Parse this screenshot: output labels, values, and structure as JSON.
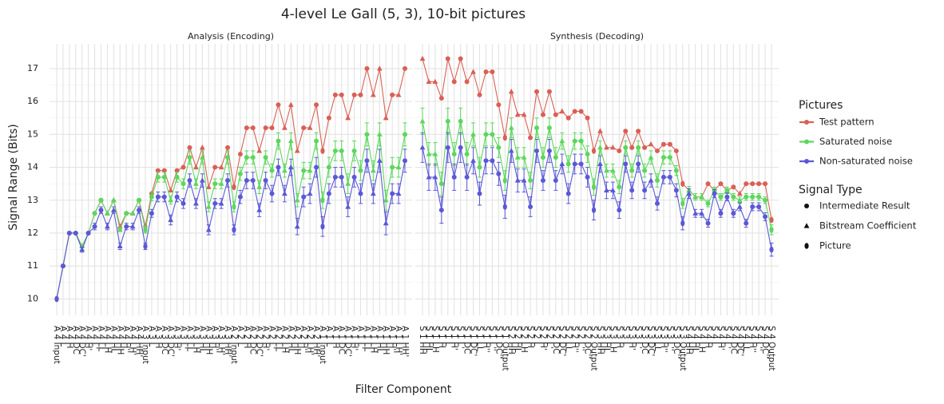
{
  "chart_data": {
    "type": "line",
    "title": "4-level Le Gall (5, 3), 10-bit pictures",
    "xlabel": "Filter Component",
    "ylabel": "Signal Range (Bits)",
    "ylim": [
      9.5,
      17.75
    ],
    "yticks": [
      10,
      11,
      12,
      13,
      14,
      15,
      16,
      17
    ],
    "grid": true,
    "legend_position": "right",
    "legend": {
      "title": "Pictures",
      "entries": [
        {
          "name": "Test pattern",
          "color": "#d95f55"
        },
        {
          "name": "Saturated noise",
          "color": "#5dd65d"
        },
        {
          "name": "Non-saturated noise",
          "color": "#5b58d6"
        }
      ]
    },
    "shape_legend": {
      "title": "Signal Type",
      "entries": [
        "Intermediate Result",
        "Bitstream Coefficient",
        "Picture"
      ]
    },
    "facets": [
      {
        "title": "Analysis (Encoding)",
        "categories": [
          "A 4 Input",
          "A 4 L",
          "A 4 H",
          "A 4 DC",
          "A 4 DC'",
          "A 4 H'",
          "A 4 L'",
          "A 4 LL",
          "A 4 LH",
          "A 4 HL",
          "A 4 HH",
          "A 4 H''",
          "A 4 LH'",
          "A 4 HH'",
          "A 3 Input",
          "A 3 L",
          "A 3 H",
          "A 3 DC",
          "A 3 DC'",
          "A 3 H'",
          "A 3 L'",
          "A 3 LL",
          "A 3 LH",
          "A 3 HL",
          "A 3 HH",
          "A 3 H''",
          "A 3 LH'",
          "A 3 HH'",
          "A 2 Input",
          "A 2 L",
          "A 2 H",
          "A 2 DC",
          "A 2 DC'",
          "A 2 H'",
          "A 2 L'",
          "A 2 LL",
          "A 2 LH",
          "A 2 HL",
          "A 2 HH",
          "A 2 H''",
          "A 2 LH'",
          "A 2 HH'",
          "A 1 Input",
          "A 1 L",
          "A 1 H",
          "A 1 DC",
          "A 1 DC'",
          "A 1 H'",
          "A 1 L'",
          "A 1 LL",
          "A 1 LH",
          "A 1 HL",
          "A 1 HH",
          "A 1 H''",
          "A 1 LH'",
          "A 1 HH'"
        ],
        "signal_types": [
          "Picture",
          "Intermediate Result",
          "Intermediate Result",
          "Intermediate Result",
          "Bitstream Coefficient",
          "Intermediate Result",
          "Intermediate Result",
          "Intermediate Result",
          "Bitstream Coefficient",
          "Bitstream Coefficient",
          "Bitstream Coefficient",
          "Intermediate Result",
          "Bitstream Coefficient",
          "Intermediate Result",
          "Picture",
          "Intermediate Result",
          "Intermediate Result",
          "Intermediate Result",
          "Bitstream Coefficient",
          "Intermediate Result",
          "Intermediate Result",
          "Intermediate Result",
          "Bitstream Coefficient",
          "Bitstream Coefficient",
          "Bitstream Coefficient",
          "Intermediate Result",
          "Bitstream Coefficient",
          "Intermediate Result",
          "Picture",
          "Intermediate Result",
          "Intermediate Result",
          "Intermediate Result",
          "Bitstream Coefficient",
          "Intermediate Result",
          "Intermediate Result",
          "Intermediate Result",
          "Bitstream Coefficient",
          "Bitstream Coefficient",
          "Bitstream Coefficient",
          "Intermediate Result",
          "Bitstream Coefficient",
          "Intermediate Result",
          "Picture",
          "Intermediate Result",
          "Intermediate Result",
          "Intermediate Result",
          "Bitstream Coefficient",
          "Intermediate Result",
          "Intermediate Result",
          "Intermediate Result",
          "Bitstream Coefficient",
          "Bitstream Coefficient",
          "Bitstream Coefficient",
          "Intermediate Result",
          "Bitstream Coefficient",
          "Intermediate Result"
        ],
        "series": [
          {
            "values": [
              10,
              11,
              12,
              12,
              11.6,
              12,
              12.6,
              13,
              12.6,
              13,
              12.2,
              12.6,
              12.6,
              13,
              12.2,
              13.2,
              13.9,
              13.9,
              13.3,
              13.9,
              14,
              14.6,
              14,
              14.6,
              13.4,
              14,
              14,
              14.6,
              13.4,
              14.4,
              15.2,
              15.2,
              14.5,
              15.2,
              15.2,
              15.9,
              15.2,
              15.9,
              14.5,
              15.2,
              15.2,
              15.9,
              14.5,
              15.5,
              16.2,
              16.2,
              15.5,
              16.2,
              16.2,
              17,
              16.2,
              17,
              15.5,
              16.2,
              16.2,
              17
            ]
          },
          {
            "values": [
              10,
              11,
              12,
              12,
              11.6,
              12,
              12.6,
              13,
              12.6,
              13,
              12.1,
              12.6,
              12.6,
              13,
              12.1,
              13.1,
              13.7,
              13.7,
              13,
              13.7,
              13.5,
              14.3,
              13.5,
              14.3,
              12.8,
              13.5,
              13.5,
              14.3,
              12.8,
              13.8,
              14.3,
              14.3,
              13.4,
              14.3,
              13.9,
              14.8,
              13.9,
              14.8,
              13,
              13.9,
              13.9,
              14.8,
              13,
              14,
              14.5,
              14.5,
              13.5,
              14.5,
              13.9,
              15,
              13.9,
              15,
              13,
              14,
              14,
              15
            ],
            "errors": [
              0,
              0,
              0,
              0,
              0,
              0,
              0,
              0,
              0,
              0,
              0,
              0,
              0,
              0,
              0.1,
              0.12,
              0.15,
              0.15,
              0.12,
              0.15,
              0.15,
              0.2,
              0.15,
              0.2,
              0.15,
              0.15,
              0.15,
              0.2,
              0.15,
              0.2,
              0.2,
              0.2,
              0.2,
              0.2,
              0.2,
              0.25,
              0.2,
              0.25,
              0.2,
              0.25,
              0.25,
              0.25,
              0.25,
              0.3,
              0.3,
              0.3,
              0.3,
              0.3,
              0.3,
              0.35,
              0.3,
              0.35,
              0.3,
              0.3,
              0.3,
              0.35
            ]
          },
          {
            "values": [
              10,
              11,
              12,
              12,
              11.5,
              12,
              12.2,
              12.7,
              12.2,
              12.7,
              11.6,
              12.2,
              12.2,
              12.7,
              11.6,
              12.6,
              13.1,
              13.1,
              12.4,
              13.1,
              12.9,
              13.6,
              12.9,
              13.6,
              12.1,
              12.9,
              12.9,
              13.6,
              12.1,
              13.1,
              13.6,
              13.6,
              12.7,
              13.6,
              13.2,
              14,
              13.2,
              14,
              12.2,
              13.1,
              13.2,
              14,
              12.2,
              13.2,
              13.7,
              13.7,
              12.8,
              13.7,
              13.2,
              14.2,
              13.2,
              14.2,
              12.3,
              13.2,
              13.2,
              14.2
            ],
            "errors": [
              0,
              0,
              0,
              0,
              0.08,
              0,
              0.1,
              0.1,
              0.1,
              0.1,
              0.1,
              0.1,
              0.1,
              0.1,
              0.1,
              0.12,
              0.15,
              0.15,
              0.15,
              0.15,
              0.15,
              0.2,
              0.15,
              0.2,
              0.15,
              0.15,
              0.15,
              0.2,
              0.15,
              0.2,
              0.25,
              0.25,
              0.2,
              0.25,
              0.25,
              0.25,
              0.25,
              0.25,
              0.25,
              0.3,
              0.3,
              0.3,
              0.3,
              0.3,
              0.3,
              0.3,
              0.3,
              0.3,
              0.3,
              0.35,
              0.3,
              0.35,
              0.35,
              0.3,
              0.3,
              0.35
            ]
          }
        ]
      },
      {
        "title": "Synthesis (Decoding)",
        "categories": [
          "S 1 HH",
          "S 1 HL",
          "S 1 LH",
          "S 1 H",
          "S 1 L",
          "S 1 H'",
          "S 1 L'",
          "S 1 DC",
          "S 1 DC'",
          "S 1 LL",
          "S 1 H''",
          "S 1 L''",
          "S 1 DC''",
          "S 1 Output",
          "S 2 HH",
          "S 2 HL",
          "S 2 LH",
          "S 2 H",
          "S 2 L",
          "S 2 H'",
          "S 2 L'",
          "S 2 DC",
          "S 2 DC'",
          "S 2 LL",
          "S 2 H''",
          "S 2 L''",
          "S 2 DC''",
          "S 2 Output",
          "S 3 HH",
          "S 3 HL",
          "S 3 LH",
          "S 3 H",
          "S 3 L",
          "S 3 H'",
          "S 3 L'",
          "S 3 DC",
          "S 3 DC'",
          "S 3 LL",
          "S 3 H''",
          "S 3 L''",
          "S 3 DC''",
          "S 3 Output",
          "S 4 HH",
          "S 4 HL",
          "S 4 LH",
          "S 4 H",
          "S 4 L",
          "S 4 H'",
          "S 4 L'",
          "S 4 DC",
          "S 4 DC'",
          "S 4 LL",
          "S 4 H''",
          "S 4 L''",
          "S 4 DC''",
          "S 4 Output"
        ],
        "signal_types": [
          "Bitstream Coefficient",
          "Bitstream Coefficient",
          "Bitstream Coefficient",
          "Intermediate Result",
          "Intermediate Result",
          "Intermediate Result",
          "Intermediate Result",
          "Intermediate Result",
          "Bitstream Coefficient",
          "Intermediate Result",
          "Intermediate Result",
          "Intermediate Result",
          "Intermediate Result",
          "Picture",
          "Bitstream Coefficient",
          "Bitstream Coefficient",
          "Bitstream Coefficient",
          "Intermediate Result",
          "Intermediate Result",
          "Intermediate Result",
          "Intermediate Result",
          "Intermediate Result",
          "Bitstream Coefficient",
          "Intermediate Result",
          "Intermediate Result",
          "Intermediate Result",
          "Intermediate Result",
          "Picture",
          "Bitstream Coefficient",
          "Bitstream Coefficient",
          "Bitstream Coefficient",
          "Intermediate Result",
          "Intermediate Result",
          "Intermediate Result",
          "Intermediate Result",
          "Intermediate Result",
          "Bitstream Coefficient",
          "Intermediate Result",
          "Intermediate Result",
          "Intermediate Result",
          "Intermediate Result",
          "Picture",
          "Bitstream Coefficient",
          "Bitstream Coefficient",
          "Bitstream Coefficient",
          "Intermediate Result",
          "Intermediate Result",
          "Intermediate Result",
          "Intermediate Result",
          "Intermediate Result",
          "Bitstream Coefficient",
          "Intermediate Result",
          "Intermediate Result",
          "Intermediate Result",
          "Intermediate Result",
          "Picture"
        ],
        "series": [
          {
            "values": [
              17.3,
              16.6,
              16.6,
              16.1,
              17.3,
              16.6,
              17.3,
              16.6,
              16.9,
              16.2,
              16.9,
              16.9,
              15.9,
              14.9,
              16.3,
              15.6,
              15.6,
              14.9,
              16.3,
              15.6,
              16.3,
              15.6,
              15.7,
              15.5,
              15.7,
              15.7,
              15.5,
              14.5,
              15.1,
              14.6,
              14.6,
              14.5,
              15.1,
              14.6,
              15.1,
              14.6,
              14.7,
              14.5,
              14.7,
              14.7,
              14.5,
              13.5,
              13.3,
              13.1,
              13.1,
              13.5,
              13.3,
              13.5,
              13.3,
              13.4,
              13.2,
              13.5,
              13.5,
              13.5,
              13.5,
              12.4
            ]
          },
          {
            "values": [
              15.4,
              14.4,
              14.4,
              13.5,
              15.4,
              14.4,
              15.4,
              14.4,
              15,
              14,
              15,
              15,
              14.6,
              13.6,
              15.2,
              14.3,
              14.3,
              13.6,
              15.2,
              14.3,
              15.2,
              14.3,
              14.8,
              14.1,
              14.8,
              14.8,
              14.4,
              13.4,
              14.6,
              13.9,
              13.9,
              13.4,
              14.6,
              13.9,
              14.6,
              13.9,
              14.3,
              13.6,
              14.3,
              14.3,
              13.9,
              12.9,
              13.3,
              13.1,
              13.1,
              12.9,
              13.3,
              13.1,
              13.3,
              13.1,
              13,
              13.1,
              13.1,
              13.1,
              13,
              12.1
            ],
            "errors": [
              0.4,
              0.35,
              0.35,
              0.35,
              0.4,
              0.35,
              0.4,
              0.35,
              0.35,
              0.3,
              0.35,
              0.35,
              0.3,
              0.3,
              0.3,
              0.3,
              0.3,
              0.25,
              0.3,
              0.3,
              0.3,
              0.3,
              0.25,
              0.25,
              0.25,
              0.25,
              0.25,
              0.25,
              0.2,
              0.2,
              0.2,
              0.2,
              0.2,
              0.2,
              0.2,
              0.2,
              0.2,
              0.2,
              0.2,
              0.2,
              0.15,
              0.15,
              0.12,
              0.1,
              0.1,
              0.1,
              0.1,
              0.1,
              0.1,
              0.1,
              0.1,
              0.1,
              0.1,
              0.1,
              0.1,
              0.15
            ]
          },
          {
            "values": [
              14.6,
              13.7,
              13.7,
              12.7,
              14.6,
              13.7,
              14.6,
              13.7,
              14.2,
              13.2,
              14.2,
              14.2,
              13.8,
              12.8,
              14.5,
              13.6,
              13.6,
              12.8,
              14.5,
              13.6,
              14.5,
              13.6,
              14.1,
              13.2,
              14.1,
              14.1,
              13.7,
              12.7,
              14.1,
              13.3,
              13.3,
              12.7,
              14.1,
              13.3,
              14.1,
              13.3,
              13.6,
              12.9,
              13.7,
              13.7,
              13.3,
              12.3,
              13.2,
              12.6,
              12.6,
              12.3,
              13.2,
              12.6,
              13.1,
              12.6,
              12.8,
              12.3,
              12.8,
              12.8,
              12.5,
              11.5
            ],
            "errors": [
              0.45,
              0.4,
              0.4,
              0.4,
              0.45,
              0.4,
              0.45,
              0.4,
              0.4,
              0.35,
              0.4,
              0.4,
              0.35,
              0.35,
              0.35,
              0.35,
              0.35,
              0.3,
              0.35,
              0.3,
              0.35,
              0.3,
              0.3,
              0.3,
              0.3,
              0.3,
              0.3,
              0.3,
              0.25,
              0.25,
              0.25,
              0.25,
              0.25,
              0.25,
              0.25,
              0.25,
              0.2,
              0.2,
              0.2,
              0.2,
              0.2,
              0.2,
              0.15,
              0.12,
              0.12,
              0.12,
              0.12,
              0.12,
              0.12,
              0.12,
              0.12,
              0.12,
              0.12,
              0.12,
              0.12,
              0.2
            ]
          }
        ]
      }
    ]
  }
}
